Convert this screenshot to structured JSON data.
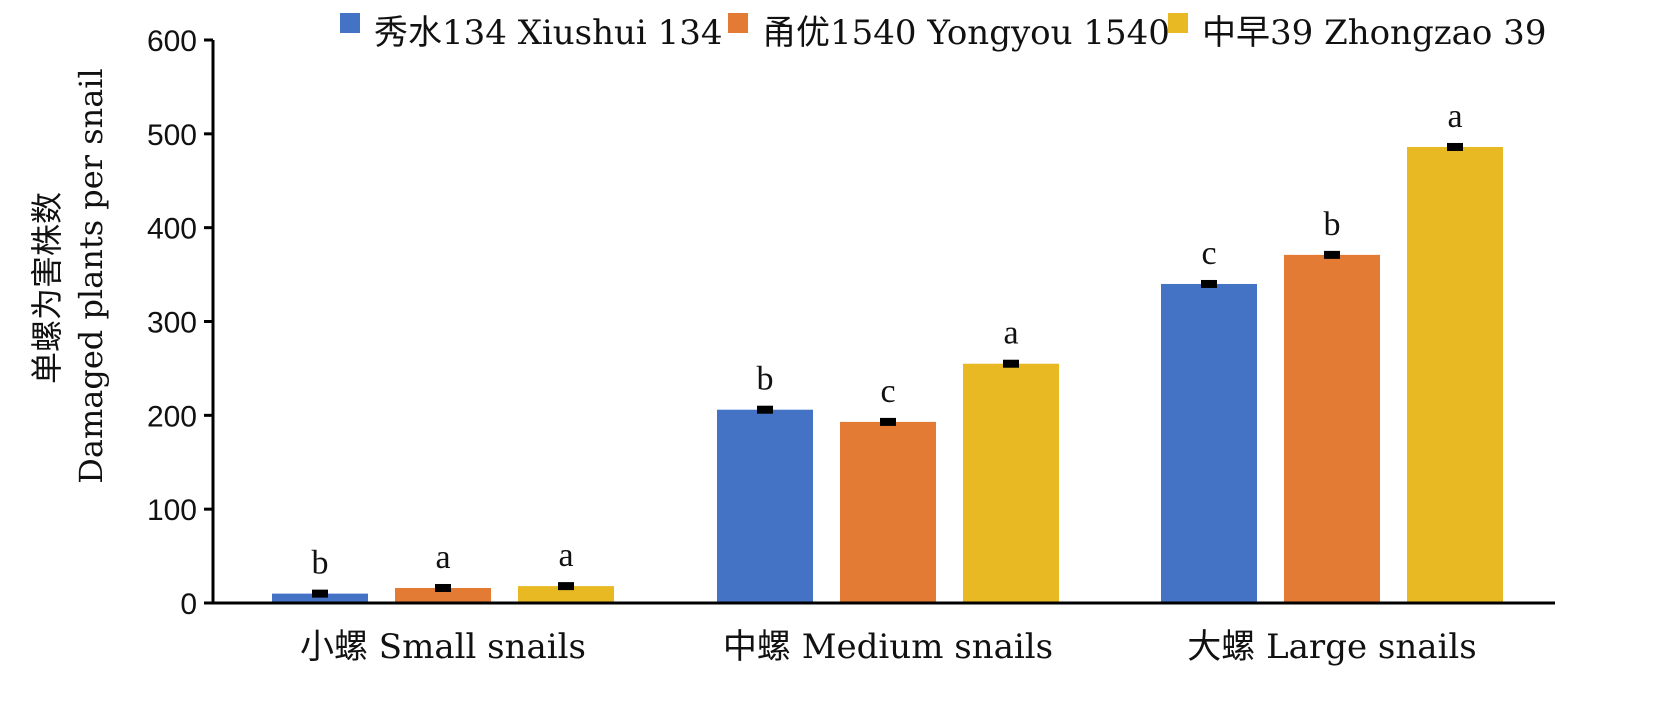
{
  "chart_data": {
    "type": "bar",
    "ylabel_line1": "单螺为害株数",
    "ylabel_line2": "Damaged plants per snail",
    "ylim": [
      0,
      600
    ],
    "yticks": [
      "0",
      "100",
      "200",
      "300",
      "400",
      "500",
      "600"
    ],
    "legend_position": "top",
    "categories": [
      "小螺 Small snails",
      "中螺 Medium snails",
      "大螺 Large snails"
    ],
    "series": [
      {
        "name": "秀水134 Xiushui 134",
        "color": "#4472c4",
        "values": [
          10,
          206,
          340
        ],
        "errors": [
          2,
          2,
          2
        ],
        "sig": [
          "b",
          "b",
          "c"
        ]
      },
      {
        "name": "甬优1540 Yongyou 1540",
        "color": "#e47b34",
        "values": [
          16,
          193,
          371
        ],
        "errors": [
          3,
          3,
          3
        ],
        "sig": [
          "a",
          "c",
          "b"
        ]
      },
      {
        "name": "中早39 Zhongzao 39",
        "color": "#e8b923",
        "values": [
          18,
          255,
          486
        ],
        "errors": [
          4,
          4,
          3
        ],
        "sig": [
          "a",
          "a",
          "a"
        ]
      }
    ]
  }
}
